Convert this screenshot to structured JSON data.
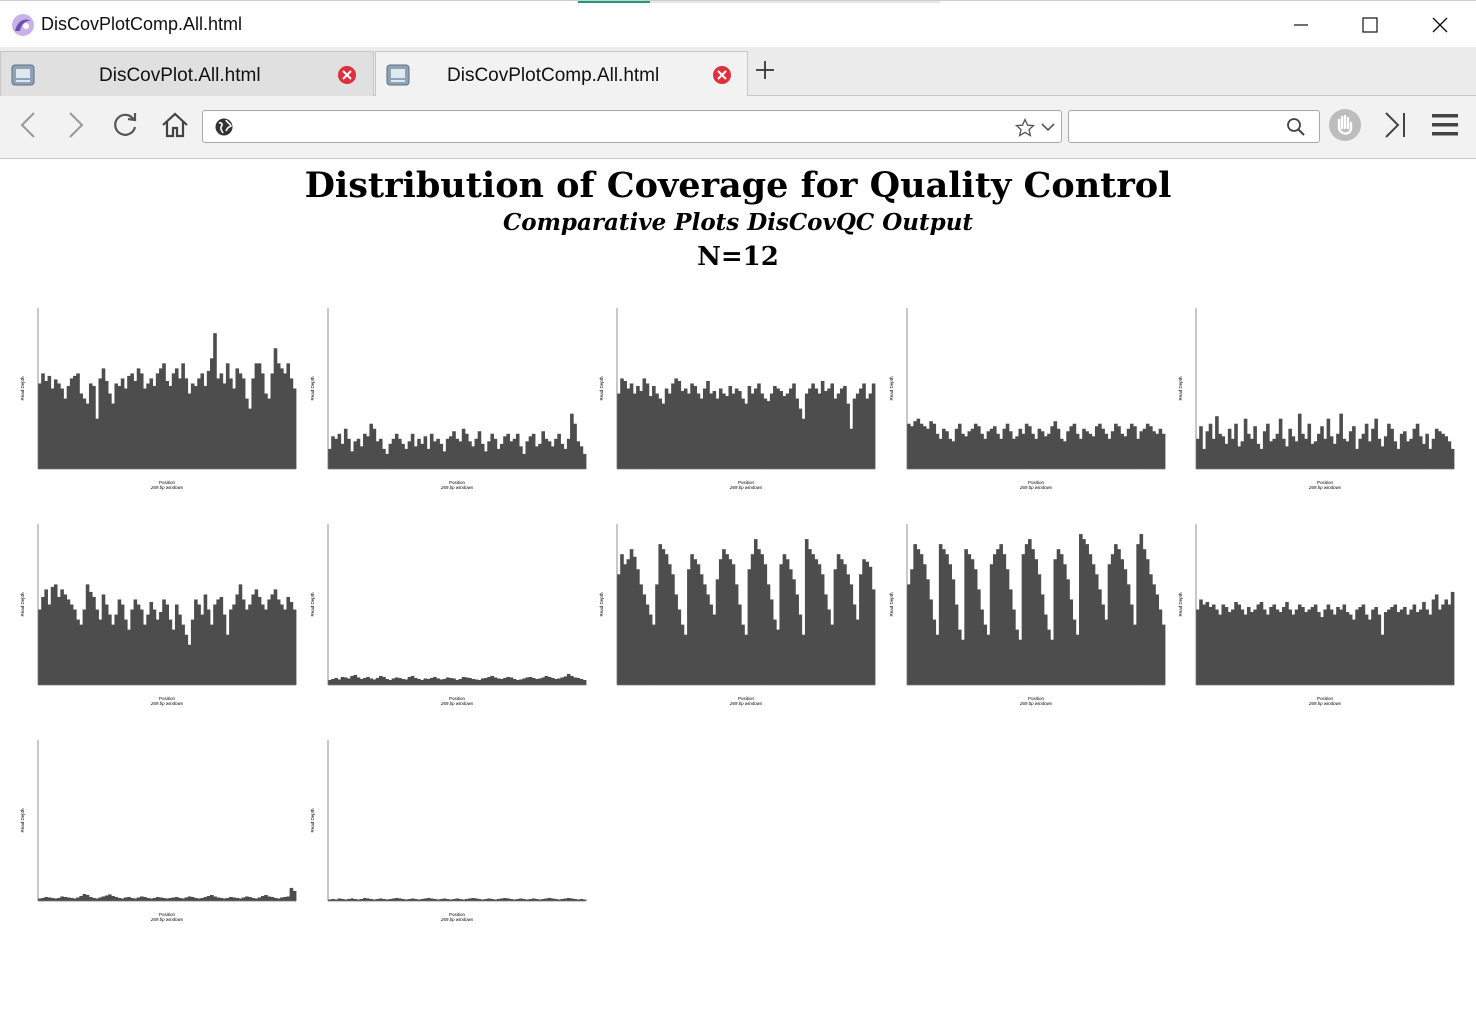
{
  "window": {
    "title": "DisCovPlotComp.All.html",
    "icons": {
      "app": "browser-logo-icon",
      "minimize": "minimize-icon",
      "maximize": "maximize-icon",
      "close": "close-icon"
    }
  },
  "tabs": [
    {
      "label": "DisCovPlot.All.html",
      "active": false
    },
    {
      "label": "DisCovPlotComp.All.html",
      "active": true
    }
  ],
  "navbar": {
    "url": "",
    "search_value": "",
    "icons": [
      "back-icon",
      "forward-icon",
      "reload-icon",
      "home-icon",
      "globe-icon",
      "bookmark-star-icon",
      "dropdown-icon",
      "search-icon",
      "hand-icon",
      "sidebar-icon",
      "menu-icon"
    ]
  },
  "colors": {
    "bar_fill": "#4d4d4d",
    "tab_close": "#e0303f",
    "accent": "#1c9a79"
  },
  "page": {
    "title": "Distribution of Coverage for Quality Control",
    "subtitle": "Comparative Plots DisCovQC Output",
    "count": "N=12"
  },
  "chart_data": [
    {
      "type": "bar",
      "ylabel": "Read Depth",
      "xlabel": "Position",
      "xsublabel": "269 bp windows",
      "ylim": [
        0,
        320
      ],
      "values": [
        170,
        190,
        175,
        185,
        160,
        178,
        170,
        160,
        140,
        165,
        180,
        185,
        190,
        150,
        140,
        130,
        170,
        165,
        100,
        180,
        200,
        175,
        150,
        130,
        170,
        165,
        180,
        160,
        185,
        190,
        175,
        200,
        190,
        160,
        170,
        180,
        165,
        190,
        200,
        210,
        175,
        165,
        190,
        200,
        180,
        210,
        180,
        150,
        170,
        165,
        180,
        190,
        165,
        195,
        220,
        270,
        180,
        190,
        170,
        210,
        180,
        160,
        200,
        190,
        180,
        140,
        120,
        180,
        210,
        210,
        190,
        150,
        140,
        190,
        240,
        210,
        200,
        190,
        210,
        180,
        160
      ]
    },
    {
      "type": "bar",
      "ylabel": "Read Depth",
      "xlabel": "Position",
      "xsublabel": "269 bp windows",
      "ylim": [
        0,
        320
      ],
      "values": [
        40,
        65,
        60,
        70,
        50,
        80,
        60,
        35,
        55,
        60,
        45,
        70,
        65,
        90,
        80,
        55,
        60,
        40,
        30,
        50,
        60,
        70,
        60,
        50,
        40,
        55,
        70,
        45,
        60,
        50,
        65,
        40,
        70,
        55,
        60,
        50,
        35,
        60,
        65,
        75,
        60,
        55,
        80,
        70,
        55,
        45,
        60,
        75,
        50,
        35,
        55,
        70,
        60,
        40,
        50,
        65,
        70,
        55,
        60,
        70,
        45,
        30,
        55,
        65,
        70,
        45,
        50,
        75,
        60,
        55,
        45,
        60,
        70,
        50,
        40,
        60,
        110,
        90,
        55,
        45,
        30
      ]
    },
    {
      "type": "bar",
      "ylabel": "Read Depth",
      "xlabel": "Position",
      "xsublabel": "269 bp windows",
      "ylim": [
        0,
        320
      ],
      "values": [
        150,
        180,
        175,
        160,
        170,
        150,
        165,
        155,
        180,
        170,
        145,
        165,
        150,
        140,
        130,
        160,
        150,
        170,
        180,
        175,
        155,
        160,
        150,
        170,
        165,
        150,
        140,
        160,
        175,
        150,
        155,
        140,
        160,
        150,
        145,
        165,
        150,
        160,
        155,
        140,
        130,
        165,
        150,
        160,
        170,
        150,
        140,
        135,
        150,
        165,
        160,
        155,
        145,
        150,
        160,
        170,
        140,
        120,
        100,
        150,
        160,
        170,
        160,
        150,
        175,
        155,
        160,
        170,
        140,
        150,
        160,
        165,
        130,
        80,
        140,
        150,
        160,
        170,
        140,
        150,
        170
      ]
    },
    {
      "type": "bar",
      "ylabel": "Read Depth",
      "xlabel": "Position",
      "xsublabel": "269 bp windows",
      "ylim": [
        0,
        320
      ],
      "values": [
        90,
        85,
        95,
        100,
        90,
        85,
        80,
        95,
        90,
        70,
        60,
        80,
        75,
        60,
        55,
        80,
        90,
        70,
        65,
        75,
        80,
        90,
        85,
        70,
        60,
        75,
        80,
        85,
        70,
        60,
        80,
        90,
        75,
        60,
        65,
        80,
        70,
        90,
        85,
        70,
        60,
        80,
        75,
        65,
        70,
        85,
        95,
        80,
        60,
        55,
        75,
        85,
        90,
        70,
        60,
        80,
        75,
        70,
        65,
        85,
        90,
        80,
        70,
        60,
        75,
        90,
        85,
        70,
        65,
        80,
        90,
        85,
        60,
        75,
        80,
        90,
        85,
        75,
        70,
        80,
        70
      ]
    },
    {
      "type": "bar",
      "ylabel": "Read Depth",
      "xlabel": "Position",
      "xsublabel": "269 bp windows",
      "ylim": [
        0,
        320
      ],
      "values": [
        60,
        85,
        40,
        75,
        90,
        60,
        105,
        70,
        65,
        50,
        80,
        60,
        90,
        45,
        55,
        100,
        70,
        60,
        85,
        50,
        40,
        75,
        90,
        55,
        60,
        70,
        100,
        60,
        45,
        80,
        65,
        55,
        110,
        70,
        60,
        90,
        50,
        55,
        70,
        85,
        60,
        100,
        65,
        50,
        70,
        110,
        60,
        55,
        75,
        85,
        40,
        60,
        70,
        90,
        55,
        80,
        100,
        60,
        45,
        65,
        90,
        80,
        55,
        40,
        70,
        75,
        55,
        60,
        80,
        90,
        65,
        50,
        70,
        40,
        60,
        80,
        75,
        70,
        65,
        55,
        40
      ]
    },
    {
      "type": "bar",
      "ylabel": "Read Depth",
      "xlabel": "Position",
      "xsublabel": "269 bp windows",
      "ylim": [
        0,
        320
      ],
      "values": [
        150,
        175,
        190,
        160,
        195,
        200,
        175,
        190,
        180,
        170,
        160,
        150,
        130,
        120,
        150,
        200,
        185,
        175,
        150,
        130,
        180,
        160,
        140,
        120,
        140,
        170,
        160,
        130,
        110,
        150,
        170,
        160,
        150,
        120,
        140,
        165,
        150,
        130,
        145,
        170,
        160,
        130,
        110,
        160,
        140,
        120,
        100,
        80,
        130,
        170,
        160,
        140,
        180,
        150,
        120,
        160,
        170,
        175,
        140,
        100,
        150,
        160,
        180,
        200,
        170,
        150,
        160,
        180,
        190,
        175,
        160,
        150,
        170,
        180,
        190,
        170,
        160,
        150,
        175,
        165,
        150
      ]
    },
    {
      "type": "bar",
      "ylabel": "Read Depth",
      "xlabel": "Position",
      "xsublabel": "269 bp windows",
      "ylim": [
        0,
        320
      ],
      "values": [
        10,
        12,
        14,
        11,
        16,
        15,
        13,
        18,
        20,
        15,
        12,
        14,
        16,
        13,
        11,
        14,
        18,
        16,
        12,
        10,
        13,
        15,
        14,
        12,
        11,
        16,
        18,
        14,
        12,
        10,
        13,
        12,
        14,
        16,
        13,
        11,
        12,
        15,
        14,
        13,
        10,
        12,
        16,
        15,
        14,
        12,
        11,
        10,
        13,
        14,
        16,
        18,
        15,
        13,
        12,
        14,
        16,
        15,
        12,
        10,
        11,
        13,
        15,
        16,
        14,
        12,
        13,
        15,
        18,
        16,
        14,
        12,
        13,
        15,
        17,
        22,
        18,
        15,
        14,
        12,
        10
      ]
    },
    {
      "type": "bar",
      "ylabel": "Read Depth",
      "xlabel": "Position",
      "xsublabel": "269 bp windows",
      "ylim": [
        0,
        320
      ],
      "values": [
        220,
        260,
        240,
        250,
        270,
        255,
        230,
        200,
        180,
        160,
        140,
        120,
        200,
        280,
        270,
        260,
        240,
        220,
        180,
        150,
        120,
        100,
        230,
        260,
        250,
        240,
        220,
        200,
        180,
        160,
        140,
        210,
        250,
        270,
        260,
        250,
        240,
        200,
        160,
        120,
        100,
        230,
        260,
        290,
        270,
        260,
        240,
        200,
        170,
        130,
        110,
        240,
        260,
        250,
        230,
        210,
        180,
        140,
        100,
        290,
        270,
        260,
        250,
        240,
        220,
        180,
        150,
        120,
        230,
        260,
        250,
        240,
        220,
        200,
        160,
        130,
        220,
        250,
        245,
        235,
        190
      ]
    },
    {
      "type": "bar",
      "ylabel": "Read Depth",
      "xlabel": "Position",
      "xsublabel": "269 bp windows",
      "ylim": [
        0,
        320
      ],
      "values": [
        200,
        230,
        280,
        270,
        260,
        240,
        210,
        170,
        130,
        100,
        280,
        270,
        260,
        240,
        210,
        160,
        110,
        90,
        270,
        260,
        250,
        230,
        190,
        150,
        120,
        100,
        240,
        260,
        270,
        280,
        260,
        230,
        190,
        150,
        110,
        90,
        260,
        280,
        290,
        270,
        250,
        220,
        180,
        140,
        110,
        90,
        250,
        270,
        260,
        240,
        210,
        170,
        130,
        100,
        300,
        290,
        280,
        260,
        240,
        220,
        190,
        160,
        130,
        240,
        260,
        280,
        270,
        250,
        230,
        200,
        160,
        120,
        280,
        300,
        270,
        250,
        220,
        200,
        180,
        150,
        120
      ]
    },
    {
      "type": "bar",
      "ylabel": "Read Depth",
      "xlabel": "Position",
      "xsublabel": "269 bp windows",
      "ylim": [
        0,
        320
      ],
      "values": [
        150,
        170,
        160,
        165,
        155,
        160,
        150,
        140,
        160,
        155,
        145,
        150,
        165,
        160,
        150,
        140,
        155,
        145,
        150,
        160,
        165,
        150,
        140,
        155,
        160,
        150,
        145,
        155,
        165,
        150,
        140,
        150,
        160,
        155,
        145,
        150,
        155,
        160,
        145,
        135,
        150,
        160,
        150,
        140,
        155,
        150,
        160,
        145,
        140,
        130,
        150,
        155,
        160,
        140,
        130,
        150,
        155,
        140,
        100,
        145,
        150,
        155,
        160,
        145,
        150,
        155,
        140,
        150,
        160,
        145,
        150,
        165,
        150,
        140,
        170,
        180,
        150,
        160,
        170,
        160,
        185
      ]
    },
    {
      "type": "bar",
      "ylabel": "Read Depth",
      "xlabel": "Position",
      "xsublabel": "269 bp windows",
      "ylim": [
        0,
        320
      ],
      "values": [
        5,
        6,
        8,
        7,
        6,
        5,
        6,
        9,
        8,
        7,
        6,
        5,
        7,
        10,
        14,
        12,
        8,
        6,
        5,
        7,
        9,
        11,
        13,
        10,
        8,
        6,
        5,
        7,
        8,
        6,
        5,
        7,
        9,
        8,
        6,
        5,
        6,
        8,
        7,
        6,
        5,
        6,
        7,
        8,
        6,
        5,
        7,
        9,
        8,
        6,
        5,
        6,
        8,
        10,
        12,
        9,
        7,
        6,
        5,
        6,
        8,
        7,
        6,
        5,
        7,
        9,
        8,
        6,
        5,
        7,
        10,
        12,
        9,
        8,
        6,
        5,
        7,
        8,
        9,
        26,
        20
      ]
    },
    {
      "type": "bar",
      "ylabel": "Read Depth",
      "xlabel": "Position",
      "xsublabel": "269 bp windows",
      "ylim": [
        0,
        320
      ],
      "values": [
        3,
        4,
        3,
        5,
        4,
        3,
        4,
        5,
        4,
        3,
        4,
        6,
        5,
        4,
        3,
        4,
        5,
        4,
        3,
        4,
        5,
        6,
        5,
        4,
        3,
        4,
        5,
        4,
        3,
        4,
        5,
        6,
        5,
        4,
        3,
        4,
        5,
        4,
        3,
        4,
        5,
        4,
        3,
        4,
        5,
        6,
        5,
        4,
        3,
        4,
        5,
        4,
        3,
        4,
        5,
        6,
        5,
        4,
        3,
        4,
        5,
        4,
        3,
        4,
        5,
        4,
        3,
        4,
        5,
        6,
        5,
        4,
        3,
        4,
        5,
        6,
        5,
        4,
        3,
        4,
        3
      ]
    }
  ]
}
